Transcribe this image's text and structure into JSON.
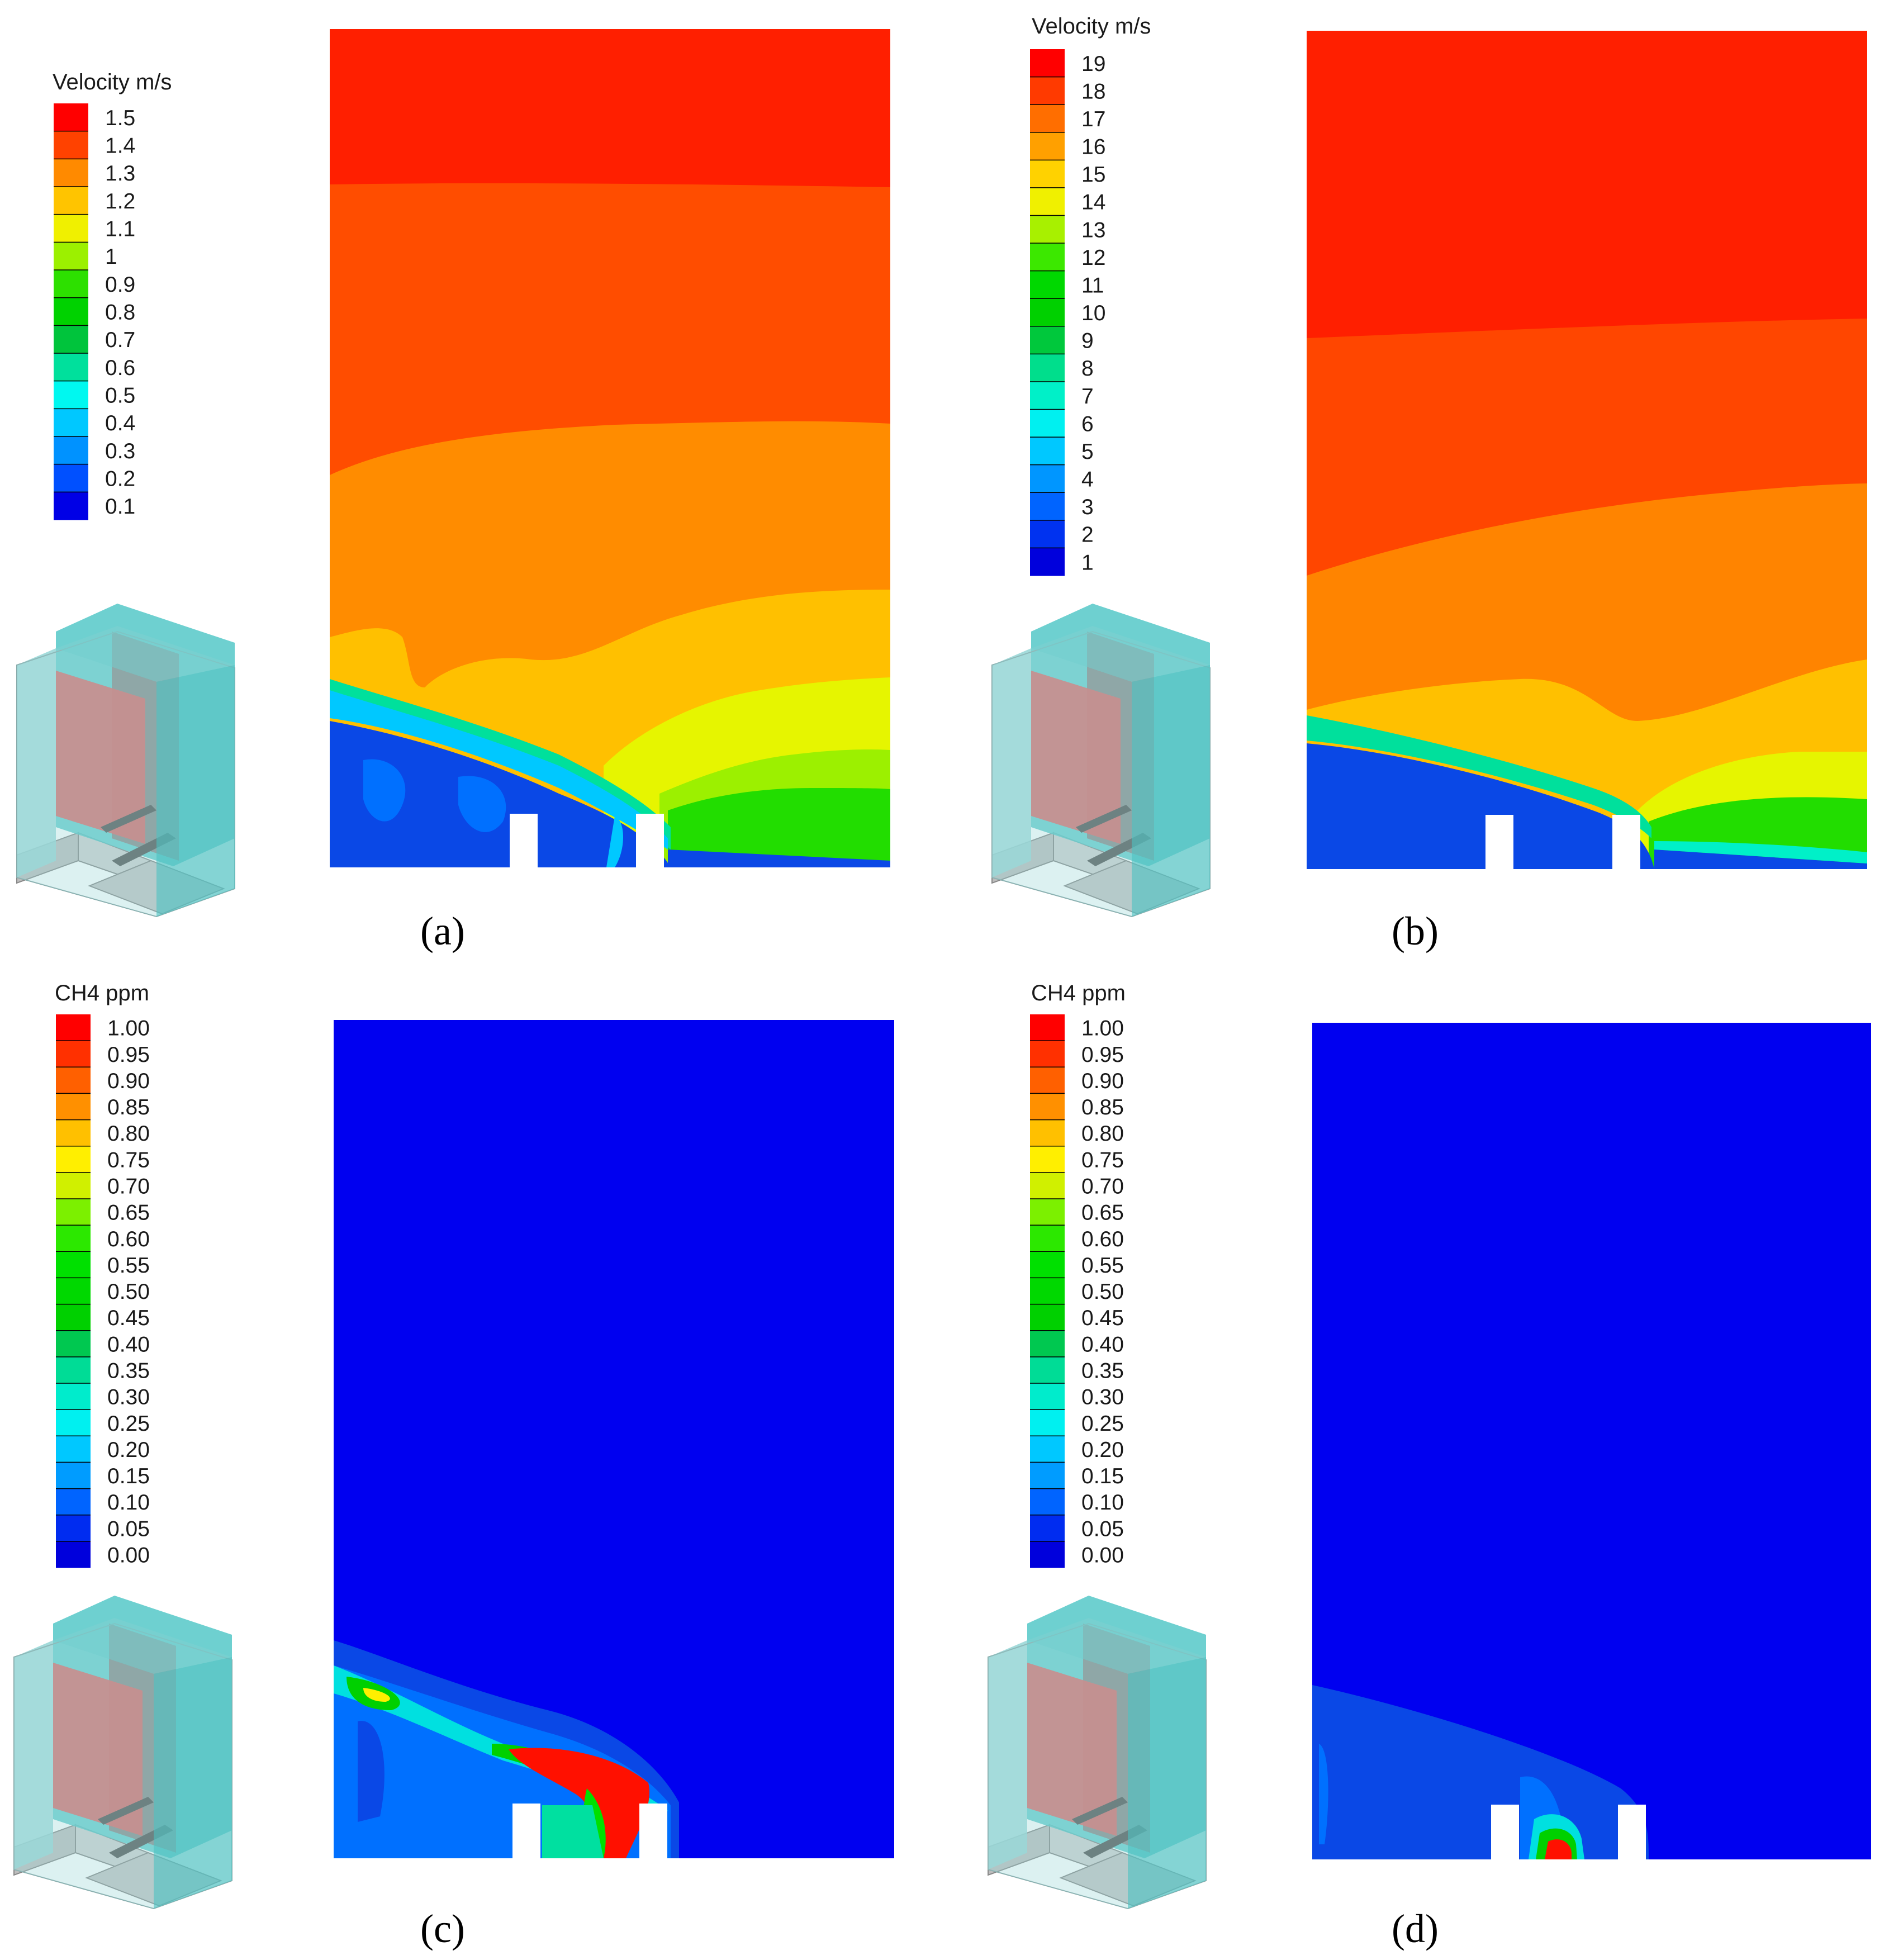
{
  "panels": [
    {
      "label": "(a)",
      "legend": {
        "title": "Velocity m/s",
        "ticks": [
          "1.5",
          "1.4",
          "1.3",
          "1.2",
          "1.1",
          "1",
          "0.9",
          "0.8",
          "0.7",
          "0.6",
          "0.5",
          "0.4",
          "0.3",
          "0.2",
          "0.1"
        ],
        "colors": [
          "#ff0000",
          "#ff4200",
          "#ff8a00",
          "#ffc400",
          "#f0f000",
          "#9cf000",
          "#2de000",
          "#00d200",
          "#00c43c",
          "#00e09c",
          "#00f8f0",
          "#00c8ff",
          "#0092ff",
          "#0050ff",
          "#0000e6"
        ]
      },
      "field": "velocity",
      "bands": [
        {
          "name": "top",
          "color": "#ff1f00"
        },
        {
          "name": "mid",
          "color": "#ff4d00"
        },
        {
          "name": "lower",
          "color": "#ff8c00"
        },
        {
          "name": "yellow-orange",
          "color": "#ffc000"
        },
        {
          "name": "yellow",
          "color": "#e6f500"
        },
        {
          "name": "green",
          "color": "#22dd00"
        },
        {
          "name": "wake",
          "color": "#0a48e6"
        }
      ]
    },
    {
      "label": "(b)",
      "legend": {
        "title": "Velocity m/s",
        "ticks": [
          "19",
          "18",
          "17",
          "16",
          "15",
          "14",
          "13",
          "12",
          "11",
          "10",
          "9",
          "8",
          "7",
          "6",
          "5",
          "4",
          "3",
          "2",
          "1"
        ],
        "colors": [
          "#ff0000",
          "#ff3a00",
          "#ff6e00",
          "#ffa000",
          "#ffd200",
          "#f0f000",
          "#a8f000",
          "#3ce800",
          "#00d800",
          "#00d000",
          "#00c83c",
          "#00de8c",
          "#00f0c8",
          "#00f0f0",
          "#00c8ff",
          "#0096ff",
          "#0064ff",
          "#0032f0",
          "#0000dc"
        ]
      },
      "field": "velocity",
      "bands": [
        {
          "name": "top",
          "color": "#ff1f00"
        },
        {
          "name": "mid",
          "color": "#ff4600"
        },
        {
          "name": "lower",
          "color": "#ff8400"
        },
        {
          "name": "yellow-orange",
          "color": "#ffc000"
        },
        {
          "name": "yellow",
          "color": "#e6f500"
        },
        {
          "name": "green",
          "color": "#22dd00"
        },
        {
          "name": "wake",
          "color": "#0a48e6"
        }
      ]
    },
    {
      "label": "(c)",
      "legend": {
        "title": "CH4 ppm",
        "ticks": [
          "1.00",
          "0.95",
          "0.90",
          "0.85",
          "0.80",
          "0.75",
          "0.70",
          "0.65",
          "0.60",
          "0.55",
          "0.50",
          "0.45",
          "0.40",
          "0.35",
          "0.30",
          "0.25",
          "0.20",
          "0.15",
          "0.10",
          "0.05",
          "0.00"
        ],
        "colors": [
          "#ff0000",
          "#ff3000",
          "#ff6000",
          "#ff9000",
          "#ffc000",
          "#ffef00",
          "#d0f000",
          "#7cf000",
          "#2ce800",
          "#00e000",
          "#00d800",
          "#00d000",
          "#00c850",
          "#00dc96",
          "#00eccc",
          "#00f0f0",
          "#00c8ff",
          "#009cff",
          "#0064ff",
          "#002cf0",
          "#0000dc"
        ]
      },
      "field": "methane"
    },
    {
      "label": "(d)",
      "legend": {
        "title": "CH4 ppm",
        "ticks": [
          "1.00",
          "0.95",
          "0.90",
          "0.85",
          "0.80",
          "0.75",
          "0.70",
          "0.65",
          "0.60",
          "0.55",
          "0.50",
          "0.45",
          "0.40",
          "0.35",
          "0.30",
          "0.25",
          "0.20",
          "0.15",
          "0.10",
          "0.05",
          "0.00"
        ],
        "colors": [
          "#ff0000",
          "#ff3000",
          "#ff6000",
          "#ff9000",
          "#ffc000",
          "#ffef00",
          "#d0f000",
          "#7cf000",
          "#2ce800",
          "#00e000",
          "#00d800",
          "#00d000",
          "#00c850",
          "#00dc96",
          "#00eccc",
          "#00f0f0",
          "#00c8ff",
          "#009cff",
          "#0064ff",
          "#002cf0",
          "#0000dc"
        ]
      },
      "field": "methane"
    }
  ],
  "chart_data": [
    {
      "type": "heatmap",
      "panel": "(a)",
      "colorbar_label": "Velocity m/s",
      "colorbar_range": [
        0.1,
        1.5
      ],
      "colorbar_step": 0.1
    },
    {
      "type": "heatmap",
      "panel": "(b)",
      "colorbar_label": "Velocity m/s",
      "colorbar_range": [
        1,
        19
      ],
      "colorbar_step": 1
    },
    {
      "type": "heatmap",
      "panel": "(c)",
      "colorbar_label": "CH4 ppm",
      "colorbar_range": [
        0,
        1
      ],
      "colorbar_step": 0.05
    },
    {
      "type": "heatmap",
      "panel": "(d)",
      "colorbar_label": "CH4 ppm",
      "colorbar_range": [
        0,
        1
      ],
      "colorbar_step": 0.05
    }
  ],
  "colors": {
    "field_blue": "#0000f0",
    "wake_blue": "#0a48e6",
    "cube_glass": "#55c8c8",
    "cube_glass_light": "#9ad8d8",
    "cube_panel_gray": "#8a8a8a",
    "cube_red": "#dc6a6a",
    "cube_slab": "#bdbdbd"
  }
}
